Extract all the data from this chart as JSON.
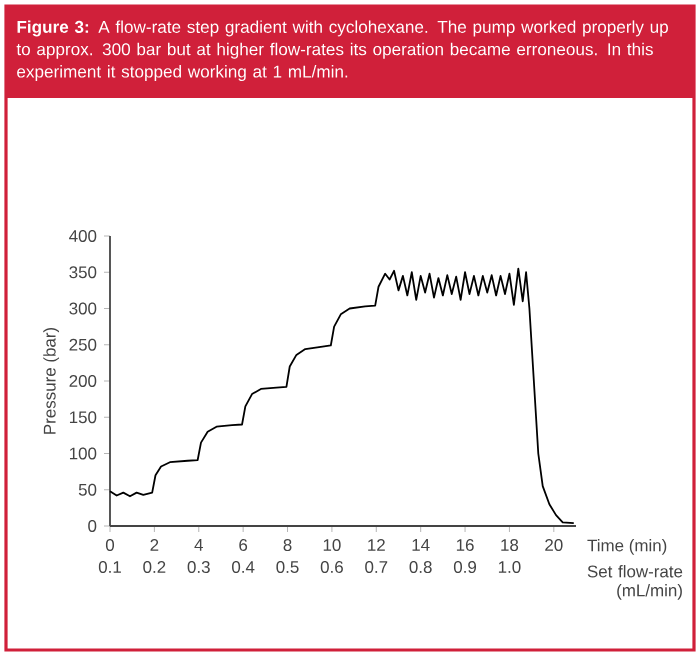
{
  "chart_data": {
    "type": "line",
    "title": "**Figure 3:** A flow-rate step gradient with cyclohexane. The pump worked properly up to approx. 300 bar but at higher flow-rates its operation became erroneous. In this experiment it stopped working at 1 mL/min.",
    "xlabel": "Time (min)",
    "ylabel": "Pressure (bar)",
    "x2label": "Set flow-rate (mL/min)",
    "color": "#000000",
    "x": [
      0,
      0.3,
      0.6,
      0.9,
      1.2,
      1.5,
      1.9,
      2.05,
      2.3,
      2.7,
      3.5,
      3.95,
      4.1,
      4.4,
      4.8,
      5.5,
      5.95,
      6.1,
      6.4,
      6.8,
      7.5,
      7.95,
      8.1,
      8.4,
      8.8,
      9.5,
      9.95,
      10.1,
      10.4,
      10.8,
      11.5,
      11.95,
      12.1,
      12.4,
      12.6,
      12.8,
      13.0,
      13.2,
      13.4,
      13.6,
      13.8,
      14.0,
      14.2,
      14.4,
      14.6,
      14.8,
      15.0,
      15.2,
      15.4,
      15.6,
      15.8,
      16.0,
      16.2,
      16.4,
      16.6,
      16.8,
      17.0,
      17.2,
      17.4,
      17.6,
      17.8,
      18.0,
      18.2,
      18.4,
      18.6,
      18.75,
      18.9,
      19.1,
      19.3,
      19.5,
      19.8,
      20.1,
      20.4,
      20.9
    ],
    "values": [
      48,
      42,
      46,
      41,
      46,
      43,
      46,
      70,
      82,
      88,
      90,
      91,
      115,
      130,
      137,
      139,
      140,
      165,
      182,
      189,
      191,
      192,
      220,
      236,
      244,
      247,
      249,
      275,
      292,
      300,
      303,
      304,
      330,
      348,
      340,
      352,
      325,
      345,
      318,
      350,
      312,
      345,
      322,
      348,
      315,
      342,
      318,
      346,
      320,
      344,
      312,
      350,
      320,
      345,
      318,
      345,
      322,
      346,
      318,
      345,
      320,
      348,
      305,
      355,
      310,
      350,
      300,
      200,
      100,
      55,
      30,
      15,
      5,
      4
    ],
    "xlim": [
      0,
      21
    ],
    "ylim": [
      0,
      400
    ],
    "xticks": [
      0,
      2,
      4,
      6,
      8,
      10,
      12,
      14,
      16,
      18,
      20
    ],
    "yticks": [
      0,
      50,
      100,
      150,
      200,
      250,
      300,
      350,
      400
    ],
    "x2lim": [
      0.1,
      1.15
    ],
    "x2ticks": [
      0.1,
      0.2,
      0.3,
      0.4,
      0.5,
      0.6,
      0.7,
      0.8,
      0.9,
      {
        "value": 1.0,
        "label": "1.0"
      }
    ]
  }
}
